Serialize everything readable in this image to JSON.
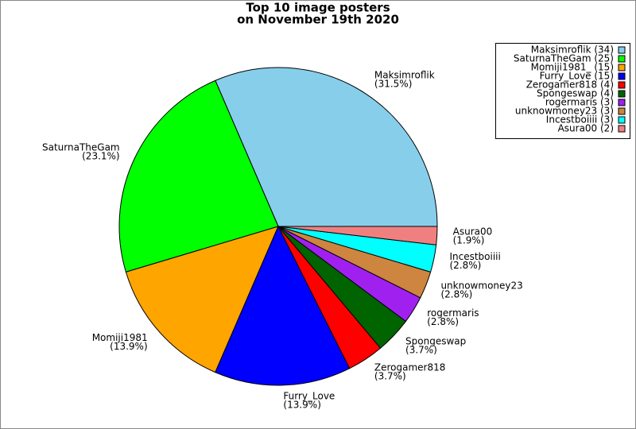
{
  "chart_data": {
    "type": "pie",
    "title": [
      "Top 10 image posters",
      "on November 19th 2020"
    ],
    "categories": [
      "Maksimroflik",
      "SaturnaTheGam",
      "Momiji1981",
      "Furry_Love",
      "Zerogamer818",
      "Spongeswap",
      "rogermaris",
      "unknowmoney23",
      "Incestboiiii",
      "Asura00"
    ],
    "values": [
      34,
      25,
      15,
      15,
      4,
      4,
      3,
      3,
      3,
      2
    ],
    "value_labels": [
      "(31.5%)",
      "(23.1%)",
      "(13.9%)",
      "(13.9%)",
      "(3.7%)",
      "(3.7%)",
      "(2.8%)",
      "(2.8%)",
      "(2.8%)",
      "(1.9%)"
    ],
    "colors": [
      "#87ceeb",
      "#00ff00",
      "#ffa500",
      "#0000ff",
      "#ff0000",
      "#006400",
      "#a020f0",
      "#cd853f",
      "#00ffff",
      "#f08080"
    ],
    "legend_labels": [
      "Maksimroflik (34)",
      "SaturnaTheGam (25)",
      "Momiji1981_ (15)",
      "Furry_Love (15)",
      "Zerogamer818 (4)",
      "Spongeswap (4)",
      "rogermaris (3)",
      "unknowmoney23 (3)",
      "Incestboiiii (3)",
      "Asura00 (2)"
    ],
    "legend": "upper right"
  }
}
